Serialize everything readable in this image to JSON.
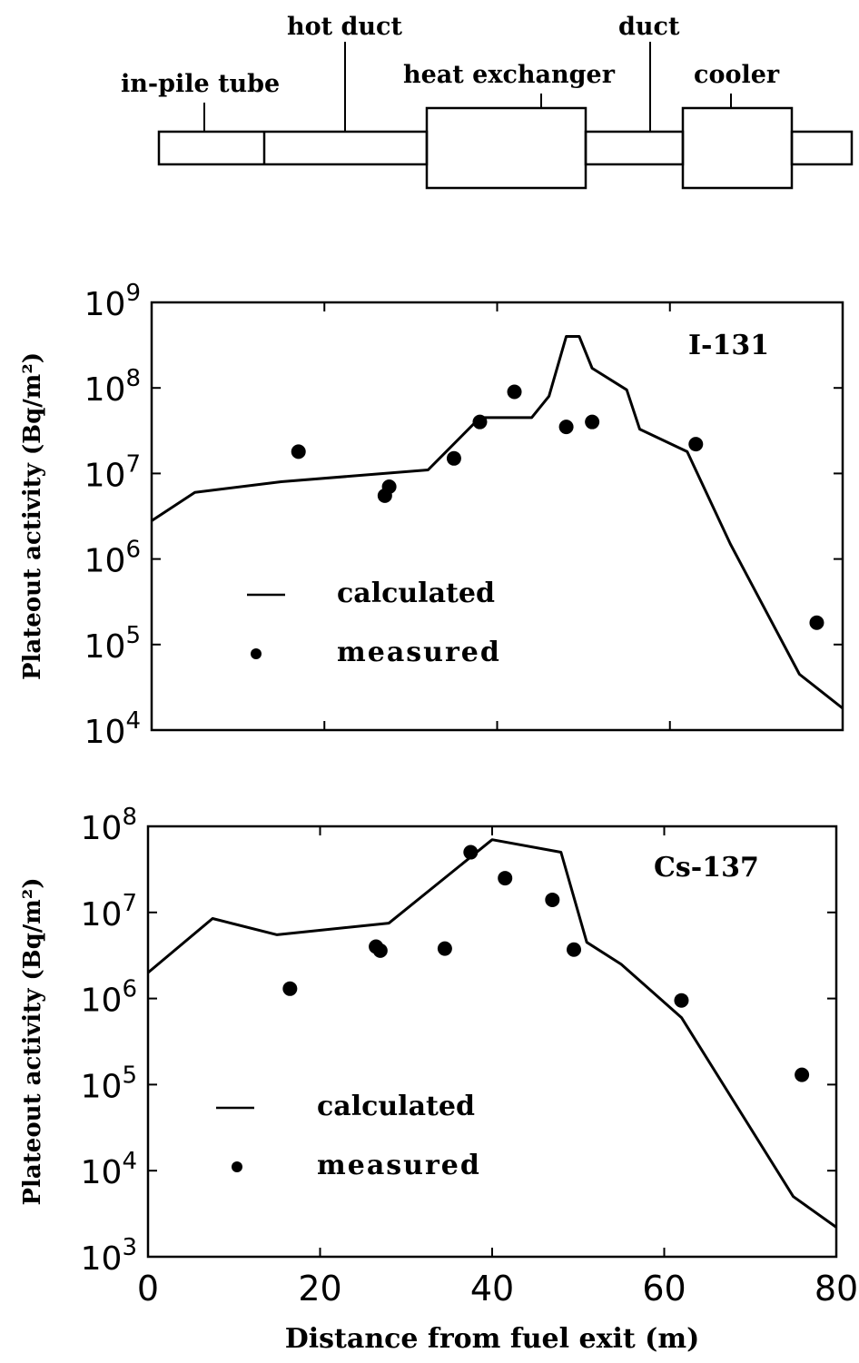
{
  "schematic": {
    "labels": {
      "in_pile_tube": "in-pile tube",
      "hot_duct": "hot duct",
      "heat_exchanger": "heat exchanger",
      "duct": "duct",
      "cooler": "cooler"
    }
  },
  "chart_data": [
    {
      "type": "line",
      "title": "I-131",
      "xlabel": "",
      "ylabel": "Plateout activity (Bq/m²)",
      "yscale": "log",
      "xlim": [
        0,
        80
      ],
      "ylim": [
        10000,
        1000000000
      ],
      "x_ticks": [
        0,
        20,
        40,
        60,
        80
      ],
      "y_tick_labels": [
        {
          "base": "10",
          "exp": "9"
        },
        {
          "base": "10",
          "exp": "8"
        },
        {
          "base": "10",
          "exp": "7"
        },
        {
          "base": "10",
          "exp": "6"
        },
        {
          "base": "10",
          "exp": "5"
        },
        {
          "base": "10",
          "exp": "4"
        }
      ],
      "legend": {
        "position": "lower-left",
        "calculated": "calculated",
        "measured": "measured"
      },
      "series": [
        {
          "name": "calculated",
          "points": [
            [
              0,
              2800000
            ],
            [
              5,
              6000000
            ],
            [
              15,
              8000000
            ],
            [
              32,
              11000000
            ],
            [
              38,
              45000000
            ],
            [
              44,
              45000000
            ],
            [
              46,
              80000000
            ],
            [
              48,
              400000000
            ],
            [
              49.5,
              400000000
            ],
            [
              51,
              170000000
            ],
            [
              55,
              95000000
            ],
            [
              56.5,
              33000000
            ],
            [
              62,
              18000000
            ],
            [
              67,
              1500000
            ],
            [
              75,
              45000
            ],
            [
              80,
              18000
            ]
          ]
        },
        {
          "name": "measured",
          "points": [
            [
              17,
              18000000
            ],
            [
              27,
              5500000
            ],
            [
              27.5,
              7000000
            ],
            [
              35,
              15000000
            ],
            [
              38,
              40000000
            ],
            [
              42,
              90000000
            ],
            [
              48,
              35000000
            ],
            [
              51,
              40000000
            ],
            [
              63,
              22000000
            ],
            [
              77,
              180000
            ]
          ]
        }
      ]
    },
    {
      "type": "line",
      "title": "Cs-137",
      "xlabel": "Distance from fuel exit (m)",
      "ylabel": "Plateout activity (Bq/m²)",
      "yscale": "log",
      "xlim": [
        0,
        80
      ],
      "ylim": [
        1000,
        100000000
      ],
      "x_ticks": [
        0,
        20,
        40,
        60,
        80
      ],
      "y_tick_labels": [
        {
          "base": "10",
          "exp": "8"
        },
        {
          "base": "10",
          "exp": "7"
        },
        {
          "base": "10",
          "exp": "6"
        },
        {
          "base": "10",
          "exp": "5"
        },
        {
          "base": "10",
          "exp": "4"
        },
        {
          "base": "10",
          "exp": "3"
        }
      ],
      "legend": {
        "position": "lower-left",
        "calculated": "calculated",
        "measured": "measured"
      },
      "series": [
        {
          "name": "calculated",
          "points": [
            [
              0,
              2000000
            ],
            [
              7.5,
              8500000
            ],
            [
              15,
              5500000
            ],
            [
              28,
              7500000
            ],
            [
              40,
              70000000
            ],
            [
              48,
              50000000
            ],
            [
              51,
              4500000
            ],
            [
              55,
              2500000
            ],
            [
              62,
              600000
            ],
            [
              75,
              5000
            ],
            [
              80,
              2200
            ]
          ]
        },
        {
          "name": "measured",
          "points": [
            [
              16.5,
              1300000
            ],
            [
              26.5,
              4000000
            ],
            [
              27,
              3600000
            ],
            [
              34.5,
              3800000
            ],
            [
              37.5,
              50000000
            ],
            [
              41.5,
              25000000
            ],
            [
              47,
              14000000
            ],
            [
              49.5,
              3700000
            ],
            [
              62,
              950000
            ],
            [
              76,
              130000
            ]
          ]
        }
      ]
    }
  ]
}
